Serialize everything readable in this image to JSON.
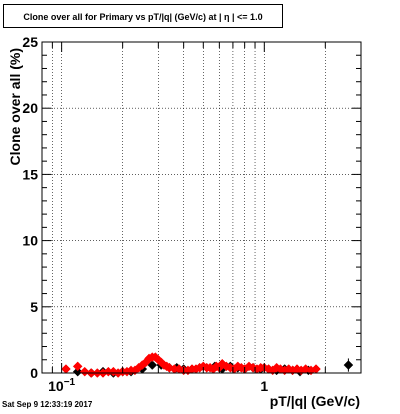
{
  "title": "Clone  over all for Primary vs pT/|q| (GeV/c) at |  η | <= 1.0",
  "timestamp": "Sat Sep  9 12:33:19 2017",
  "chart_data": {
    "type": "scatter",
    "title": "Clone  over all for Primary vs pT/|q| (GeV/c) at |  η | <= 1.0",
    "xlabel": "pT/|q| (GeV/c)",
    "ylabel": "Clone  over all (%)",
    "x_scale": "log",
    "xlim": [
      0.08,
      3.0
    ],
    "ylim": [
      0,
      25
    ],
    "grid": true,
    "x_ticks": [
      {
        "value": 0.1,
        "label": "10",
        "sup": "−1"
      },
      {
        "value": 1,
        "label": "1",
        "sup": ""
      }
    ],
    "y_ticks": [
      0,
      5,
      10,
      15,
      20,
      25
    ],
    "series": [
      {
        "color": "#000000",
        "marker": "diamond",
        "x": [
          0.12,
          0.14,
          0.16,
          0.18,
          0.2,
          0.22,
          0.25,
          0.28,
          0.31,
          0.34,
          0.37,
          0.4,
          0.44,
          0.48,
          0.52,
          0.57,
          0.62,
          0.68,
          0.74,
          0.8,
          0.88,
          0.96,
          1.05,
          1.15,
          1.26,
          1.38,
          1.5,
          1.65,
          2.6
        ],
        "y": [
          0.1,
          0.0,
          0.1,
          0.0,
          0.1,
          0.1,
          0.3,
          0.6,
          0.6,
          0.4,
          0.4,
          0.3,
          0.3,
          0.4,
          0.4,
          0.5,
          0.3,
          0.5,
          0.4,
          0.3,
          0.4,
          0.3,
          0.3,
          0.2,
          0.3,
          0.2,
          0.1,
          0.2,
          0.6
        ],
        "yerr": [
          0.1,
          0.05,
          0.1,
          0.05,
          0.1,
          0.1,
          0.15,
          0.2,
          0.2,
          0.15,
          0.15,
          0.15,
          0.15,
          0.15,
          0.15,
          0.2,
          0.15,
          0.2,
          0.2,
          0.15,
          0.2,
          0.15,
          0.15,
          0.15,
          0.2,
          0.15,
          0.1,
          0.15,
          0.5
        ]
      },
      {
        "color": "#ff0000",
        "marker": "diamond",
        "x": [
          0.105,
          0.12,
          0.13,
          0.14,
          0.15,
          0.16,
          0.17,
          0.18,
          0.19,
          0.2,
          0.21,
          0.22,
          0.23,
          0.24,
          0.25,
          0.26,
          0.27,
          0.28,
          0.29,
          0.3,
          0.31,
          0.32,
          0.33,
          0.34,
          0.36,
          0.38,
          0.4,
          0.42,
          0.44,
          0.46,
          0.48,
          0.5,
          0.52,
          0.54,
          0.56,
          0.58,
          0.6,
          0.62,
          0.65,
          0.68,
          0.71,
          0.74,
          0.77,
          0.8,
          0.84,
          0.88,
          0.92,
          0.96,
          1.0,
          1.05,
          1.1,
          1.15,
          1.2,
          1.26,
          1.32,
          1.38,
          1.45,
          1.52,
          1.6,
          1.7,
          1.8
        ],
        "y": [
          0.3,
          0.5,
          0.1,
          0.0,
          0.0,
          0.0,
          0.1,
          0.1,
          0.0,
          0.1,
          0.1,
          0.2,
          0.2,
          0.4,
          0.6,
          0.8,
          1.1,
          1.2,
          1.2,
          1.0,
          0.8,
          0.6,
          0.5,
          0.4,
          0.3,
          0.3,
          0.2,
          0.2,
          0.3,
          0.3,
          0.4,
          0.5,
          0.4,
          0.4,
          0.3,
          0.5,
          0.4,
          0.7,
          0.5,
          0.4,
          0.3,
          0.5,
          0.4,
          0.3,
          0.5,
          0.4,
          0.3,
          0.4,
          0.4,
          0.3,
          0.2,
          0.4,
          0.3,
          0.2,
          0.3,
          0.2,
          0.3,
          0.2,
          0.3,
          0.2,
          0.3
        ],
        "yerr": [
          0.2,
          0.25,
          0.1,
          0.05,
          0.05,
          0.05,
          0.1,
          0.1,
          0.05,
          0.1,
          0.1,
          0.1,
          0.1,
          0.15,
          0.2,
          0.2,
          0.25,
          0.25,
          0.25,
          0.2,
          0.2,
          0.2,
          0.15,
          0.15,
          0.15,
          0.15,
          0.1,
          0.1,
          0.15,
          0.15,
          0.15,
          0.2,
          0.15,
          0.15,
          0.15,
          0.2,
          0.15,
          0.25,
          0.2,
          0.15,
          0.15,
          0.2,
          0.15,
          0.15,
          0.2,
          0.15,
          0.15,
          0.15,
          0.15,
          0.15,
          0.1,
          0.15,
          0.15,
          0.1,
          0.15,
          0.1,
          0.15,
          0.1,
          0.15,
          0.1,
          0.15
        ]
      }
    ]
  }
}
